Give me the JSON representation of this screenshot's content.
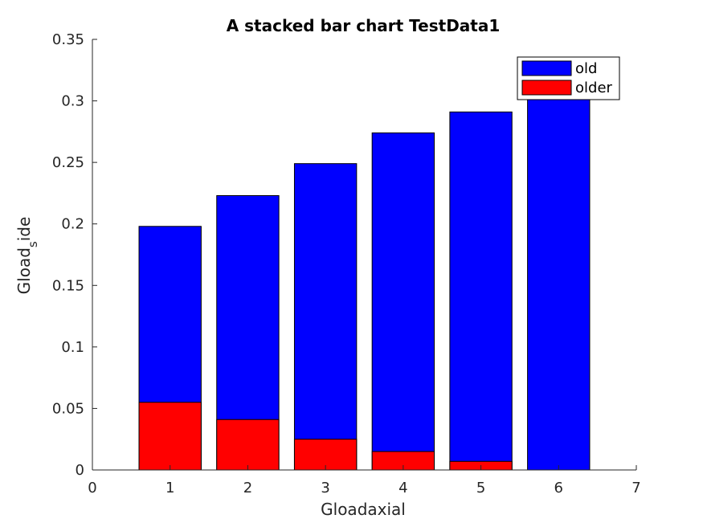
{
  "chart_data": {
    "type": "bar",
    "stacked": true,
    "title": "A stacked bar chart TestData1",
    "xlabel": "Gloadaxial",
    "ylabel": {
      "base": "Gload",
      "subscript": "s",
      "suffix": "ide"
    },
    "categories": [
      1,
      2,
      3,
      4,
      5,
      6
    ],
    "xlim": [
      0,
      7
    ],
    "ylim": [
      0,
      0.35
    ],
    "xticks": [
      "0",
      "1",
      "2",
      "3",
      "4",
      "5",
      "6",
      "7"
    ],
    "yticks": [
      "0",
      "0.05",
      "0.1",
      "0.15",
      "0.2",
      "0.25",
      "0.3",
      "0.35"
    ],
    "grid": false,
    "legend_position": "top-right",
    "series": [
      {
        "name": "old",
        "color": "#0000ff",
        "totals": [
          0.198,
          0.223,
          0.249,
          0.274,
          0.291,
          0.312
        ]
      },
      {
        "name": "older",
        "color": "#ff0000",
        "values": [
          0.055,
          0.041,
          0.025,
          0.015,
          0.007,
          0.0
        ]
      }
    ]
  }
}
